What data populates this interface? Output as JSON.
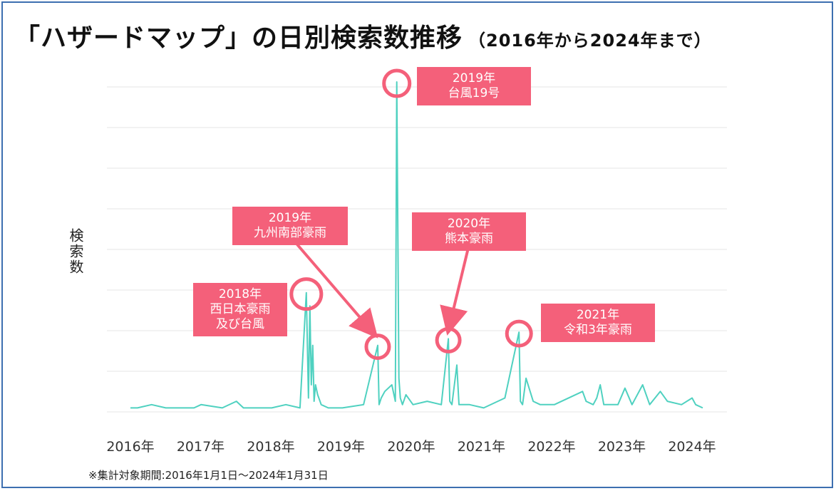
{
  "title": {
    "main": "「ハザードマップ」の日別検索数推移",
    "sub": "（2016年から2024年まで）"
  },
  "footnote": "※集計対象期間:2016年1月1日～2024年1月31日",
  "colors": {
    "line": "#4fd1c0",
    "callout": "#f4607a",
    "grid": "#e6e6e6",
    "frame": "#3d6fb0"
  },
  "chart_data": {
    "type": "line",
    "title": "「ハザードマップ」の日別検索数推移（2016年から2024年まで）",
    "xlabel": "",
    "ylabel": "検索数",
    "x_ticks": [
      "2016年",
      "2017年",
      "2018年",
      "2019年",
      "2020年",
      "2021年",
      "2022年",
      "2023年",
      "2024年"
    ],
    "xlim": [
      2016.0,
      2024.2
    ],
    "ylim": [
      0,
      100
    ],
    "grid": "horizontal",
    "series": [
      {
        "x": [
          2016.0,
          2016.1,
          2016.3,
          2016.5,
          2016.7,
          2016.9,
          2017.0,
          2017.3,
          2017.5,
          2017.6,
          2017.8,
          2018.0,
          2018.2,
          2018.4,
          2018.49,
          2018.52,
          2018.54,
          2018.56,
          2018.58,
          2018.6,
          2018.62,
          2018.65,
          2018.7,
          2018.8,
          2019.0,
          2019.3,
          2019.5,
          2019.52,
          2019.55,
          2019.6,
          2019.7,
          2019.75,
          2019.77,
          2019.8,
          2019.82,
          2019.85,
          2019.9,
          2020.0,
          2020.2,
          2020.4,
          2020.5,
          2020.52,
          2020.55,
          2020.62,
          2020.65,
          2020.8,
          2021.0,
          2021.3,
          2021.5,
          2021.52,
          2021.55,
          2021.6,
          2021.7,
          2021.8,
          2022.0,
          2022.4,
          2022.45,
          2022.55,
          2022.6,
          2022.65,
          2022.7,
          2022.9,
          2023.0,
          2023.1,
          2023.25,
          2023.35,
          2023.5,
          2023.6,
          2023.8,
          2023.95,
          2024.0,
          2024.1
        ],
        "values": [
          1,
          1,
          2,
          1,
          1,
          1,
          2,
          1,
          3,
          1,
          1,
          1,
          2,
          1,
          36,
          4,
          32,
          8,
          20,
          3,
          8,
          5,
          2,
          1,
          1,
          2,
          20,
          2,
          4,
          6,
          8,
          3,
          100,
          10,
          4,
          2,
          5,
          2,
          3,
          2,
          22,
          3,
          2,
          14,
          2,
          2,
          1,
          4,
          24,
          3,
          2,
          10,
          3,
          2,
          2,
          6,
          3,
          2,
          4,
          8,
          2,
          2,
          7,
          2,
          8,
          2,
          6,
          3,
          2,
          4,
          2,
          1
        ]
      }
    ],
    "annotations": [
      {
        "lines": [
          "2019年",
          "台風19号"
        ],
        "x": 2019.77,
        "y": 100
      },
      {
        "lines": [
          "2019年",
          "九州南部豪雨"
        ],
        "x": 2019.5,
        "y": 20
      },
      {
        "lines": [
          "2020年",
          "熊本豪雨"
        ],
        "x": 2020.5,
        "y": 22
      },
      {
        "lines": [
          "2018年",
          "西日本豪雨",
          "及び台風"
        ],
        "x": 2018.49,
        "y": 36
      },
      {
        "lines": [
          "2021年",
          "令和3年豪雨"
        ],
        "x": 2021.5,
        "y": 24
      }
    ]
  }
}
